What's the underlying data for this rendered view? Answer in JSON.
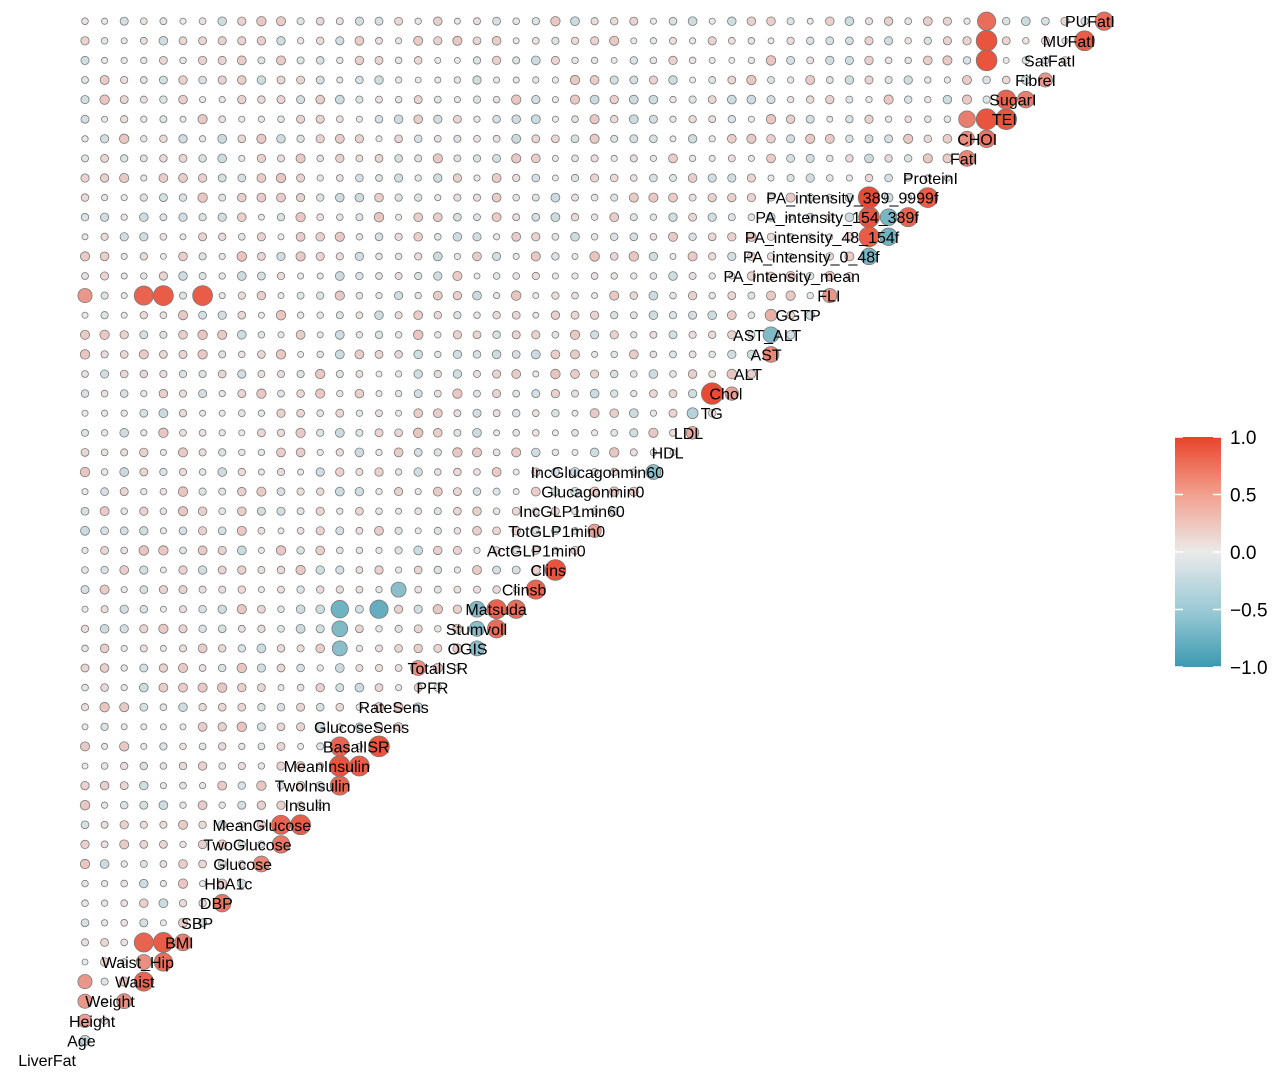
{
  "chart_data": {
    "type": "correlogram",
    "variables": [
      "LiverFat",
      "Age",
      "Height",
      "Weight",
      "Waist",
      "Waist_Hip",
      "BMI",
      "SBP",
      "DBP",
      "HbA1c",
      "Glucose",
      "TwoGlucose",
      "MeanGlucose",
      "Insulin",
      "TwoInsulin",
      "MeanInsulin",
      "BasalISR",
      "GlucoseSens",
      "RateSens",
      "PFR",
      "TotalISR",
      "OGIS",
      "Stumvoll",
      "Matsuda",
      "Clinsb",
      "Clins",
      "ActGLP1min0",
      "TotGLP1min0",
      "IncGLP1min60",
      "Glucagonmin0",
      "IncGlucagonmin60",
      "HDL",
      "LDL",
      "TG",
      "Chol",
      "ALT",
      "AST",
      "AST_ALT",
      "GGTP",
      "FLI",
      "PA_intensity_mean",
      "PA_intensity_0_48f",
      "PA_intensity_48_154f",
      "PA_intensity_154_389f",
      "PA_intensity_389_9999f",
      "ProteinI",
      "FatI",
      "CHOI",
      "TEI",
      "SugarI",
      "FibreI",
      "SatFatI",
      "MUFatI",
      "PUFatI"
    ],
    "note_values": "Approximate correlation values; the diagonal is blank. Only the strongest pairs are listed explicitly, all other pairs are weak (|r| < ~0.25).",
    "strong_pairs": [
      [
        "Age",
        "LiverFat",
        -0.25
      ],
      [
        "Height",
        "LiverFat",
        0.45
      ],
      [
        "Height",
        "Weight",
        0.55
      ],
      [
        "Weight",
        "LiverFat",
        0.5
      ],
      [
        "Weight",
        "Waist",
        0.8
      ],
      [
        "Weight",
        "Waist_Hip",
        0.55
      ],
      [
        "Weight",
        "BMI",
        0.8
      ],
      [
        "Waist",
        "LiverFat",
        0.5
      ],
      [
        "Waist",
        "Waist_Hip",
        0.75
      ],
      [
        "Waist",
        "BMI",
        0.85
      ],
      [
        "Waist_Hip",
        "BMI",
        0.65
      ],
      [
        "SBP",
        "DBP",
        0.7
      ],
      [
        "HbA1c",
        "Glucose",
        0.6
      ],
      [
        "Glucose",
        "TwoGlucose",
        0.7
      ],
      [
        "Glucose",
        "MeanGlucose",
        0.8
      ],
      [
        "TwoGlucose",
        "MeanGlucose",
        0.85
      ],
      [
        "Insulin",
        "TwoInsulin",
        0.8
      ],
      [
        "Insulin",
        "MeanInsulin",
        0.9
      ],
      [
        "Insulin",
        "BasalISR",
        0.8
      ],
      [
        "TwoInsulin",
        "MeanInsulin",
        0.85
      ],
      [
        "MeanInsulin",
        "BasalISR",
        0.9
      ],
      [
        "Insulin",
        "OGIS",
        -0.55
      ],
      [
        "Insulin",
        "Stumvoll",
        -0.6
      ],
      [
        "Insulin",
        "Matsuda",
        -0.7
      ],
      [
        "MeanInsulin",
        "Matsuda",
        -0.75
      ],
      [
        "BasalISR",
        "Clinsb",
        -0.55
      ],
      [
        "GlucoseSens",
        "TotalISR",
        0.55
      ],
      [
        "TotalISR",
        "OGIS",
        -0.55
      ],
      [
        "TotalISR",
        "Stumvoll",
        -0.55
      ],
      [
        "TotalISR",
        "Matsuda",
        -0.6
      ],
      [
        "OGIS",
        "Stumvoll",
        0.75
      ],
      [
        "OGIS",
        "Matsuda",
        0.8
      ],
      [
        "Stumvoll",
        "Matsuda",
        0.75
      ],
      [
        "Matsuda",
        "Clinsb",
        0.8
      ],
      [
        "Clinsb",
        "Clins",
        0.9
      ],
      [
        "ActGLP1min0",
        "TotGLP1min0",
        0.45
      ],
      [
        "Glucagonmin0",
        "IncGlucagonmin60",
        -0.55
      ],
      [
        "HDL",
        "LDL",
        0.4
      ],
      [
        "HDL",
        "TG",
        -0.3
      ],
      [
        "LDL",
        "Chol",
        0.95
      ],
      [
        "TG",
        "Chol",
        0.45
      ],
      [
        "ALT",
        "AST",
        0.6
      ],
      [
        "ALT",
        "AST_ALT",
        -0.6
      ],
      [
        "ALT",
        "GGTP",
        0.35
      ],
      [
        "GGTP",
        "FLI",
        0.5
      ],
      [
        "BMI",
        "FLI",
        0.85
      ],
      [
        "Waist",
        "FLI",
        0.85
      ],
      [
        "Weight",
        "FLI",
        0.8
      ],
      [
        "LiverFat",
        "FLI",
        0.5
      ],
      [
        "PA_intensity_mean",
        "PA_intensity_0_48f",
        -0.65
      ],
      [
        "PA_intensity_mean",
        "PA_intensity_48_154f",
        0.85
      ],
      [
        "PA_intensity_mean",
        "PA_intensity_154_389f",
        0.9
      ],
      [
        "PA_intensity_mean",
        "PA_intensity_389_9999f",
        0.95
      ],
      [
        "PA_intensity_0_48f",
        "PA_intensity_48_154f",
        -0.7
      ],
      [
        "PA_intensity_0_48f",
        "PA_intensity_154_389f",
        -0.65
      ],
      [
        "PA_intensity_48_154f",
        "PA_intensity_154_389f",
        0.8
      ],
      [
        "PA_intensity_154_389f",
        "PA_intensity_389_9999f",
        0.85
      ],
      [
        "ProteinI",
        "FatI",
        0.6
      ],
      [
        "ProteinI",
        "CHOI",
        0.55
      ],
      [
        "ProteinI",
        "TEI",
        0.65
      ],
      [
        "FatI",
        "CHOI",
        0.7
      ],
      [
        "FatI",
        "TEI",
        0.9
      ],
      [
        "CHOI",
        "TEI",
        0.9
      ],
      [
        "CHOI",
        "SugarI",
        0.8
      ],
      [
        "TEI",
        "SugarI",
        0.65
      ],
      [
        "SugarI",
        "FibreI",
        0.5
      ],
      [
        "FatI",
        "SatFatI",
        0.9
      ],
      [
        "FatI",
        "MUFatI",
        0.9
      ],
      [
        "FatI",
        "PUFatI",
        0.75
      ],
      [
        "SatFatI",
        "MUFatI",
        0.85
      ],
      [
        "MUFatI",
        "PUFatI",
        0.75
      ]
    ],
    "legend": {
      "ticks": [
        "1.0",
        "0.5",
        "0.0",
        "−0.5",
        "−1.0"
      ],
      "tick_values": [
        1.0,
        0.5,
        0.0,
        -0.5,
        -1.0
      ],
      "range": [
        -1,
        1
      ],
      "placement": "right",
      "color_high": "#e8432b",
      "color_mid": "#eaeaea",
      "color_low": "#3a9ab0"
    },
    "title": "",
    "xlabel": "",
    "ylabel": "",
    "grid": false
  }
}
